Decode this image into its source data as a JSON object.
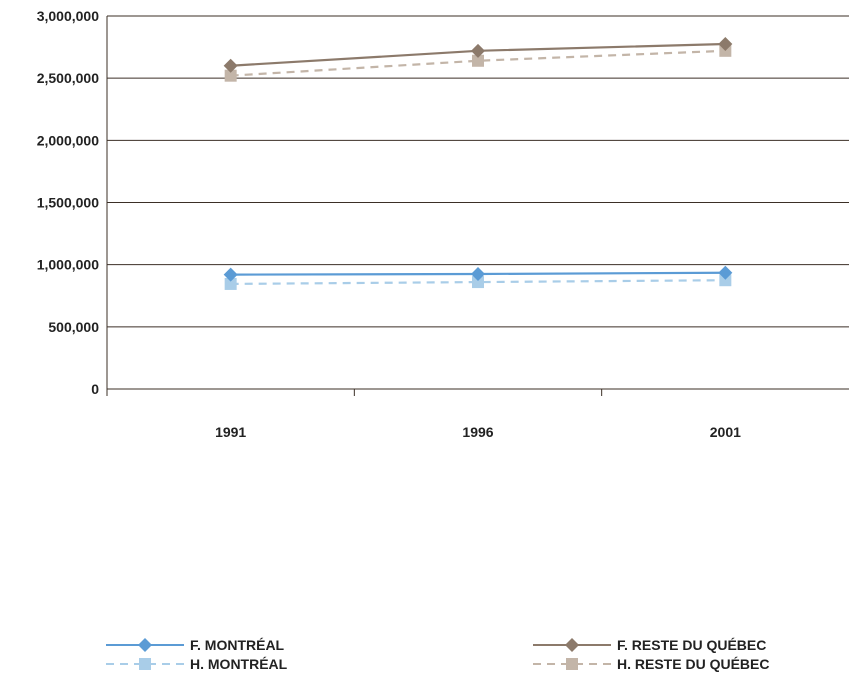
{
  "chart_data": {
    "type": "line",
    "categories": [
      "1991",
      "1996",
      "2001"
    ],
    "ylim": [
      0,
      3000000
    ],
    "yticks": [
      "0",
      "500,000",
      "1,000,000",
      "1,500,000",
      "2,000,000",
      "2,500,000",
      "3,000,000"
    ],
    "ytick_values": [
      0,
      500000,
      1000000,
      1500000,
      2000000,
      2500000,
      3000000
    ],
    "grid": true,
    "legend_position": "bottom",
    "series": [
      {
        "name": "F. MONTRÉAL",
        "values": [
          920000,
          925000,
          935000
        ],
        "color": "#5b9bd5",
        "marker": "diamond",
        "dash": false
      },
      {
        "name": "H. MONTRÉAL",
        "values": [
          845000,
          860000,
          875000
        ],
        "color": "#a9cde8",
        "marker": "square",
        "dash": true
      },
      {
        "name": "F. RESTE DU QUÉBEC",
        "values": [
          2600000,
          2720000,
          2775000
        ],
        "color": "#8c7a6b",
        "marker": "diamond",
        "dash": false
      },
      {
        "name": "H. RESTE DU QUÉBEC",
        "values": [
          2520000,
          2640000,
          2720000
        ],
        "color": "#c3b5a8",
        "marker": "square",
        "dash": true
      }
    ]
  }
}
